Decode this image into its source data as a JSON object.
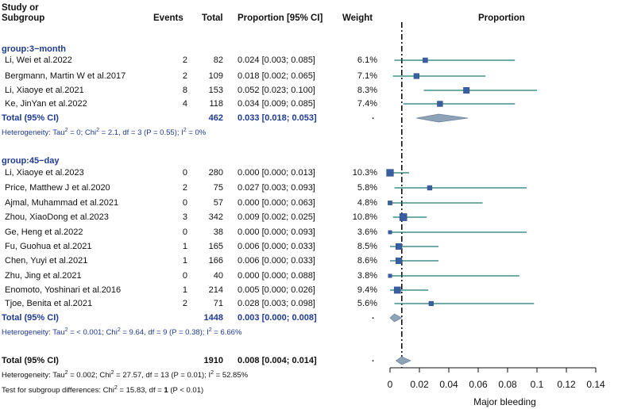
{
  "headers": {
    "study_line1": "Study or",
    "study_line2": "Subgroup",
    "events": "Events",
    "total": "Total",
    "proportion_ci": "Proportion [95% CI]",
    "weight": "Weight",
    "plot": "Proportion"
  },
  "groups": [
    {
      "label": "group:3−month",
      "studies": [
        {
          "name": "Li, Wei et al.2022",
          "events": "2",
          "total": "82",
          "ci": "0.024 [0.003; 0.085]",
          "weight": "6.1%"
        },
        {
          "name": "Bergmann, Martin W et al.2017",
          "events": "2",
          "total": "109",
          "ci": "0.018 [0.002; 0.065]",
          "weight": "7.1%"
        },
        {
          "name": "Li, Xiaoye et al.2021",
          "events": "8",
          "total": "153",
          "ci": "0.052 [0.023; 0.100]",
          "weight": "8.3%"
        },
        {
          "name": "Ke, JinYan et al.2022",
          "events": "4",
          "total": "118",
          "ci": "0.034 [0.009; 0.085]",
          "weight": "7.4%"
        }
      ],
      "total": {
        "label": "Total (95% CI)",
        "total": "462",
        "ci": "0.033 [0.018; 0.053]",
        "weight": "."
      },
      "heterogeneity": {
        "prefix": "Heterogeneity: Tau",
        "mid1": " = 0; Chi",
        "rest": " = 2.1, df = 3 (P = 0.55); I",
        "end": " = 0%"
      }
    },
    {
      "label": "group:45−day",
      "studies": [
        {
          "name": "Li, Xiaoye et al.2023",
          "events": "0",
          "total": "280",
          "ci": "0.000 [0.000; 0.013]",
          "weight": "10.3%"
        },
        {
          "name": "Price, Matthew J et al.2020",
          "events": "2",
          "total": "75",
          "ci": "0.027 [0.003; 0.093]",
          "weight": "5.8%"
        },
        {
          "name": "Ajmal, Muhammad et al.2021",
          "events": "0",
          "total": "57",
          "ci": "0.000 [0.000; 0.063]",
          "weight": "4.8%"
        },
        {
          "name": "Zhou, XiaoDong et al.2023",
          "events": "3",
          "total": "342",
          "ci": "0.009 [0.002; 0.025]",
          "weight": "10.8%"
        },
        {
          "name": "Ge, Heng et al.2022",
          "events": "0",
          "total": "38",
          "ci": "0.000 [0.000; 0.093]",
          "weight": "3.6%"
        },
        {
          "name": "Fu, Guohua et al.2021",
          "events": "1",
          "total": "165",
          "ci": "0.006 [0.000; 0.033]",
          "weight": "8.5%"
        },
        {
          "name": "Chen, Yuyi et al.2021",
          "events": "1",
          "total": "166",
          "ci": "0.006 [0.000; 0.033]",
          "weight": "8.6%"
        },
        {
          "name": "Zhu, Jing et al.2021",
          "events": "0",
          "total": "40",
          "ci": "0.000 [0.000; 0.088]",
          "weight": "3.8%"
        },
        {
          "name": "Enomoto, Yoshinari et al.2016",
          "events": "1",
          "total": "214",
          "ci": "0.005 [0.000; 0.026]",
          "weight": "9.4%"
        },
        {
          "name": "Tjoe, Benita et al.2021",
          "events": "2",
          "total": "71",
          "ci": "0.028 [0.003; 0.098]",
          "weight": "5.6%"
        }
      ],
      "total": {
        "label": "Total (95% CI)",
        "total": "1448",
        "ci": "0.003 [0.000; 0.008]",
        "weight": "."
      },
      "heterogeneity": {
        "prefix": "Heterogeneity: Tau",
        "mid1": " = < 0.001; Chi",
        "rest": " = 9.64, df = 9 (P = 0.38); I",
        "end": " = 6.66%"
      }
    }
  ],
  "overall": {
    "label": "Total (95% CI)",
    "total": "1910",
    "ci": "0.008 [0.004; 0.014]",
    "weight": ".",
    "heterogeneity": {
      "prefix": "Heterogeneity: Tau",
      "mid1": " = 0.002; Chi",
      "rest": " = 27.57, df = 13 (P = 0.01); I",
      "end": " = 52.85%"
    },
    "subgroup_test": {
      "prefix": "Test for subgroup differences: Chi",
      "rest": " = 15.83, df = ",
      "df": "1",
      "end": " (P < 0.01)"
    }
  },
  "sup2": "2",
  "colors": {
    "line": "#1f7a75",
    "square": "#3a5fa0",
    "diamond": "#8fa3b8",
    "text_blue": "#1f3a93"
  },
  "chart_data": {
    "type": "forest",
    "xlabel": "Major bleeding",
    "xlim": [
      0,
      0.14
    ],
    "xticks": [
      0,
      0.02,
      0.04,
      0.06,
      0.08,
      0.1,
      0.12,
      0.14
    ],
    "xtick_labels": [
      "0",
      "0.02",
      "0.04",
      "0.06",
      "0.08",
      "0.1",
      "0.12",
      "0.14"
    ],
    "reference_line": 0.008,
    "studies": [
      {
        "est": 0.024,
        "lo": 0.003,
        "hi": 0.085,
        "w": 6.1
      },
      {
        "est": 0.018,
        "lo": 0.002,
        "hi": 0.065,
        "w": 7.1
      },
      {
        "est": 0.052,
        "lo": 0.023,
        "hi": 0.1,
        "w": 8.3
      },
      {
        "est": 0.034,
        "lo": 0.009,
        "hi": 0.085,
        "w": 7.4
      },
      {
        "est": 0.0,
        "lo": 0.0,
        "hi": 0.013,
        "w": 10.3
      },
      {
        "est": 0.027,
        "lo": 0.003,
        "hi": 0.093,
        "w": 5.8
      },
      {
        "est": 0.0,
        "lo": 0.0,
        "hi": 0.063,
        "w": 4.8
      },
      {
        "est": 0.009,
        "lo": 0.002,
        "hi": 0.025,
        "w": 10.8
      },
      {
        "est": 0.0,
        "lo": 0.0,
        "hi": 0.093,
        "w": 3.6
      },
      {
        "est": 0.006,
        "lo": 0.0,
        "hi": 0.033,
        "w": 8.5
      },
      {
        "est": 0.006,
        "lo": 0.0,
        "hi": 0.033,
        "w": 8.6
      },
      {
        "est": 0.0,
        "lo": 0.0,
        "hi": 0.088,
        "w": 3.8
      },
      {
        "est": 0.005,
        "lo": 0.0,
        "hi": 0.026,
        "w": 9.4
      },
      {
        "est": 0.028,
        "lo": 0.003,
        "hi": 0.098,
        "w": 5.6
      }
    ],
    "pooled": [
      {
        "name": "3-month",
        "est": 0.033,
        "lo": 0.018,
        "hi": 0.053
      },
      {
        "name": "45-day",
        "est": 0.003,
        "lo": 0.0,
        "hi": 0.008
      },
      {
        "name": "overall",
        "est": 0.008,
        "lo": 0.004,
        "hi": 0.014
      }
    ]
  }
}
